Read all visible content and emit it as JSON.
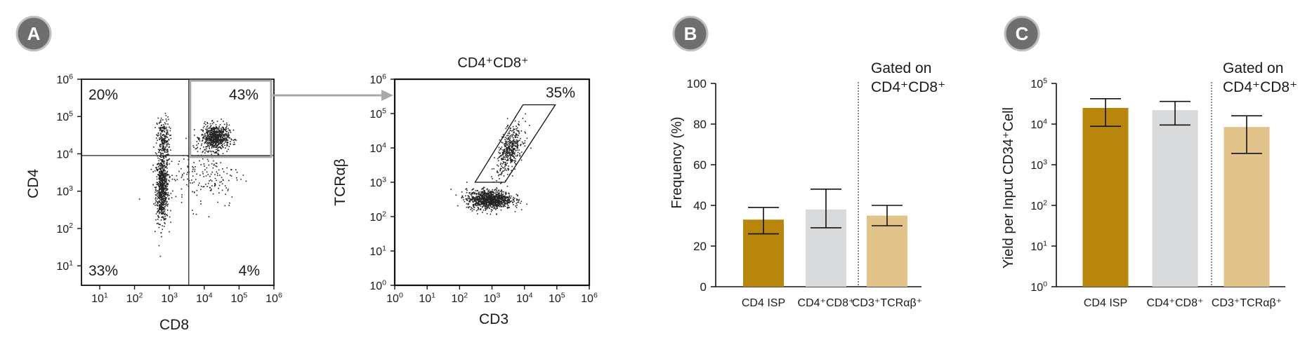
{
  "panels": {
    "a": {
      "badge": "A"
    },
    "b": {
      "badge": "B"
    },
    "c": {
      "badge": "C"
    }
  },
  "colors": {
    "cd4isp": "#B8860B",
    "dp": "#D9DADC",
    "tcr": "#E2C48A",
    "badge": "#6E6E70",
    "arrow": "#A8A8A8"
  },
  "chart_data": [
    {
      "id": "a-scatter",
      "type": "scatter",
      "xlabel": "CD8",
      "ylabel": "CD4",
      "xscale": "log",
      "yscale": "log",
      "xlim": [
        3,
        1000000
      ],
      "ylim": [
        3,
        1000000
      ],
      "x_ticks": [
        {
          "v": 10,
          "base": "10",
          "exp": "1"
        },
        {
          "v": 100,
          "base": "10",
          "exp": "2"
        },
        {
          "v": 1000,
          "base": "10",
          "exp": "3"
        },
        {
          "v": 10000,
          "base": "10",
          "exp": "4"
        },
        {
          "v": 100000,
          "base": "10",
          "exp": "5"
        },
        {
          "v": 1000000,
          "base": "10",
          "exp": "6"
        }
      ],
      "y_ticks": [
        {
          "v": 10,
          "base": "10",
          "exp": "1"
        },
        {
          "v": 100,
          "base": "10",
          "exp": "2"
        },
        {
          "v": 1000,
          "base": "10",
          "exp": "3"
        },
        {
          "v": 10000,
          "base": "10",
          "exp": "4"
        },
        {
          "v": 100000,
          "base": "10",
          "exp": "5"
        },
        {
          "v": 1000000,
          "base": "10",
          "exp": "6"
        }
      ],
      "quadrant_split": {
        "x": 3600,
        "y": 9000
      },
      "quadrants": [
        {
          "position": "top-left",
          "label": "20%"
        },
        {
          "position": "top-right",
          "label": "43%"
        },
        {
          "position": "bottom-left",
          "label": "33%"
        },
        {
          "position": "bottom-right",
          "label": "4%"
        }
      ],
      "clusters": [
        {
          "cx": 600,
          "cy": 1200,
          "sx": 0.09,
          "sy": 0.45,
          "n": 700
        },
        {
          "cx": 650,
          "cy": 25000,
          "sx": 0.09,
          "sy": 0.3,
          "n": 220
        },
        {
          "cx": 20000,
          "cy": 28000,
          "sx": 0.2,
          "sy": 0.17,
          "n": 650
        },
        {
          "cx": 9000,
          "cy": 3000,
          "sx": 0.55,
          "sy": 0.45,
          "n": 200
        }
      ]
    },
    {
      "id": "a-scatter-gated",
      "type": "scatter",
      "title": "CD4⁺CD8⁺",
      "xlabel": "CD3",
      "ylabel": "TCRαβ",
      "xscale": "log",
      "yscale": "log",
      "xlim": [
        1,
        1000000
      ],
      "ylim": [
        1,
        1000000
      ],
      "x_ticks": [
        {
          "v": 1,
          "base": "10",
          "exp": "0"
        },
        {
          "v": 10,
          "base": "10",
          "exp": "1"
        },
        {
          "v": 100,
          "base": "10",
          "exp": "2"
        },
        {
          "v": 1000,
          "base": "10",
          "exp": "3"
        },
        {
          "v": 10000,
          "base": "10",
          "exp": "4"
        },
        {
          "v": 100000,
          "base": "10",
          "exp": "5"
        },
        {
          "v": 1000000,
          "base": "10",
          "exp": "6"
        }
      ],
      "y_ticks": [
        {
          "v": 1,
          "base": "10",
          "exp": "0"
        },
        {
          "v": 10,
          "base": "10",
          "exp": "1"
        },
        {
          "v": 100,
          "base": "10",
          "exp": "2"
        },
        {
          "v": 1000,
          "base": "10",
          "exp": "3"
        },
        {
          "v": 10000,
          "base": "10",
          "exp": "4"
        },
        {
          "v": 100000,
          "base": "10",
          "exp": "5"
        },
        {
          "v": 1000000,
          "base": "10",
          "exp": "6"
        }
      ],
      "gate": {
        "label": "35%",
        "vertices": [
          [
            300,
            1000
          ],
          [
            2500,
            1000
          ],
          [
            90000,
            180000
          ],
          [
            9000,
            180000
          ]
        ]
      },
      "clusters": [
        {
          "cx": 800,
          "cy": 330,
          "sx": 0.35,
          "sy": 0.14,
          "n": 950
        },
        {
          "cx": 3500,
          "cy": 9000,
          "sx": 0.2,
          "sy": 0.3,
          "n": 420
        }
      ]
    },
    {
      "id": "b-bar",
      "type": "bar",
      "ylabel": "Frequency (%)",
      "ylim": [
        0,
        100
      ],
      "yticks": [
        0,
        20,
        40,
        60,
        80,
        100
      ],
      "annotation": [
        "Gated on",
        "CD4⁺CD8⁺"
      ],
      "categories": [
        "CD4 ISP",
        "CD4⁺CD8⁺",
        "CD3⁺TCRαβ⁺"
      ],
      "values": [
        33,
        38,
        35
      ],
      "error_low": [
        26,
        29,
        30
      ],
      "error_high": [
        39,
        48,
        40
      ]
    },
    {
      "id": "c-bar",
      "type": "bar",
      "ylabel": "Yield per Input CD34⁺Cell",
      "yscale": "log",
      "ylim": [
        1,
        100000
      ],
      "y_ticks": [
        {
          "v": 1,
          "base": "10",
          "exp": "0"
        },
        {
          "v": 10,
          "base": "10",
          "exp": "1"
        },
        {
          "v": 100,
          "base": "10",
          "exp": "2"
        },
        {
          "v": 1000,
          "base": "10",
          "exp": "3"
        },
        {
          "v": 10000,
          "base": "10",
          "exp": "4"
        },
        {
          "v": 100000,
          "base": "10",
          "exp": "5"
        }
      ],
      "annotation": [
        "Gated on",
        "CD4⁺CD8⁺"
      ],
      "categories": [
        "CD4 ISP",
        "CD4⁺CD8⁺",
        "CD3⁺TCRαβ⁺"
      ],
      "values": [
        25000,
        22000,
        8500
      ],
      "error_low": [
        8800,
        9500,
        1900
      ],
      "error_high": [
        42000,
        36000,
        16000
      ]
    }
  ]
}
